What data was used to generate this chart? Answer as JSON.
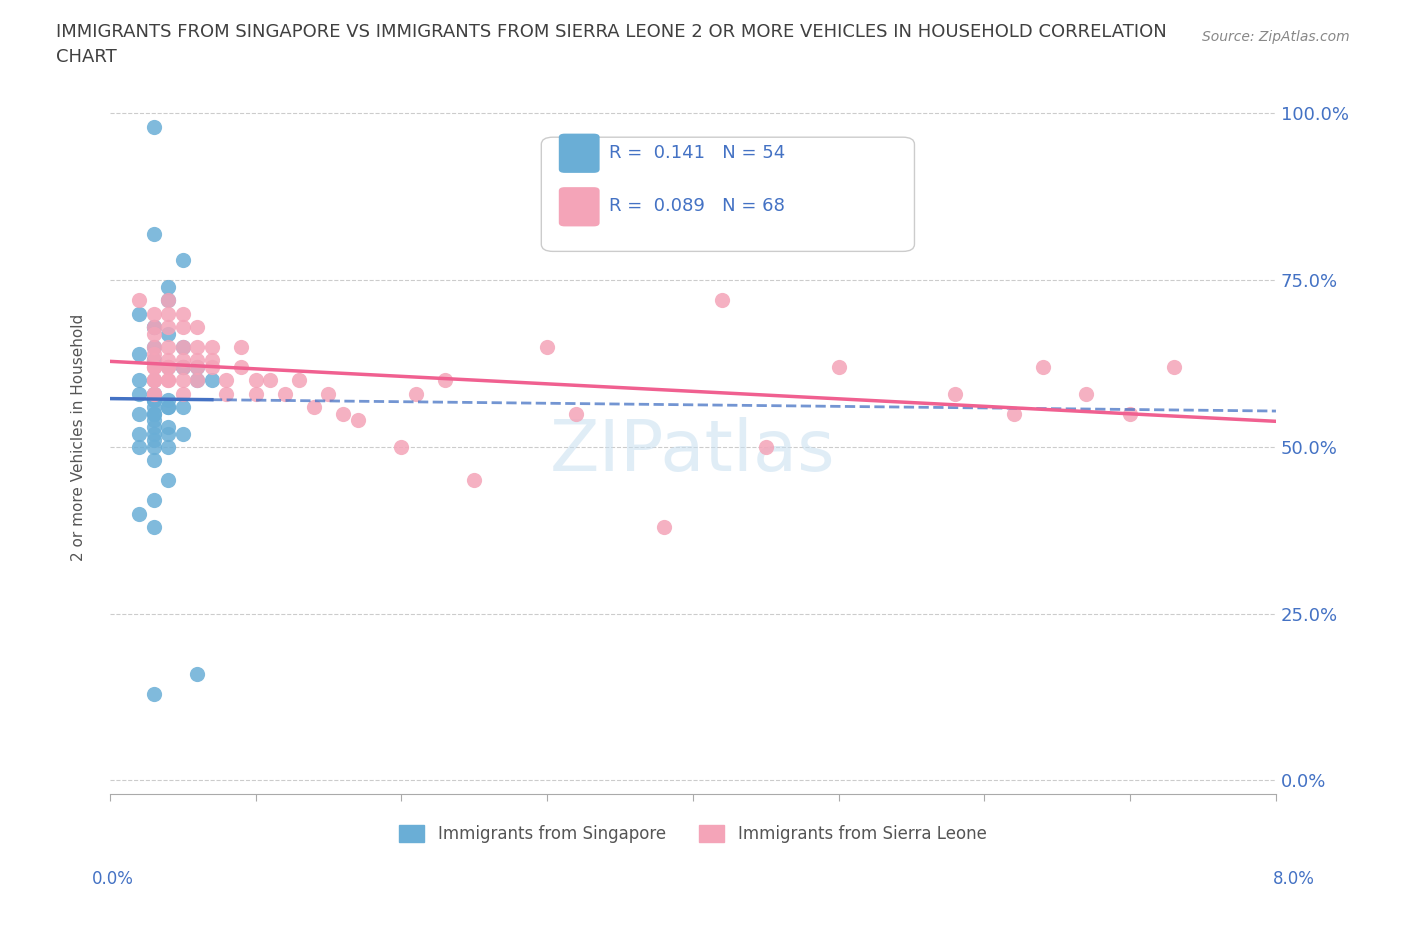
{
  "title_line1": "IMMIGRANTS FROM SINGAPORE VS IMMIGRANTS FROM SIERRA LEONE 2 OR MORE VEHICLES IN HOUSEHOLD CORRELATION",
  "title_line2": "CHART",
  "source": "Source: ZipAtlas.com",
  "ylabel_label": "2 or more Vehicles in Household",
  "x_min": 0.0,
  "x_max": 0.08,
  "y_min": 0.0,
  "y_max": 1.05,
  "watermark": "ZIPatlas",
  "legend_singapore": "R =  0.141   N = 54",
  "legend_sierra_leone": "R =  0.089   N = 68",
  "color_singapore": "#6aaed6",
  "color_sierra_leone": "#f4a4b8",
  "color_trend_singapore": "#4472c4",
  "color_trend_sierra_leone": "#f06090",
  "color_title": "#404040",
  "color_source": "#888888",
  "color_axis_labels": "#4472c4",
  "singapore_x": [
    0.003,
    0.003,
    0.005,
    0.004,
    0.004,
    0.002,
    0.003,
    0.003,
    0.004,
    0.005,
    0.003,
    0.002,
    0.003,
    0.003,
    0.004,
    0.005,
    0.006,
    0.005,
    0.006,
    0.007,
    0.003,
    0.002,
    0.003,
    0.002,
    0.003,
    0.003,
    0.003,
    0.003,
    0.004,
    0.004,
    0.005,
    0.004,
    0.003,
    0.003,
    0.003,
    0.002,
    0.003,
    0.004,
    0.003,
    0.002,
    0.004,
    0.005,
    0.003,
    0.003,
    0.002,
    0.003,
    0.004,
    0.003,
    0.004,
    0.003,
    0.002,
    0.003,
    0.006,
    0.003
  ],
  "singapore_y": [
    0.98,
    0.82,
    0.78,
    0.74,
    0.72,
    0.7,
    0.68,
    0.68,
    0.67,
    0.65,
    0.65,
    0.64,
    0.63,
    0.63,
    0.62,
    0.62,
    0.62,
    0.62,
    0.6,
    0.6,
    0.6,
    0.6,
    0.58,
    0.58,
    0.58,
    0.57,
    0.57,
    0.57,
    0.57,
    0.56,
    0.56,
    0.56,
    0.56,
    0.55,
    0.55,
    0.55,
    0.54,
    0.53,
    0.53,
    0.52,
    0.52,
    0.52,
    0.52,
    0.51,
    0.5,
    0.5,
    0.5,
    0.48,
    0.45,
    0.42,
    0.4,
    0.38,
    0.16,
    0.13
  ],
  "sierra_leone_x": [
    0.002,
    0.003,
    0.003,
    0.003,
    0.003,
    0.003,
    0.003,
    0.003,
    0.003,
    0.003,
    0.003,
    0.003,
    0.003,
    0.003,
    0.003,
    0.004,
    0.004,
    0.004,
    0.004,
    0.004,
    0.004,
    0.004,
    0.004,
    0.004,
    0.005,
    0.005,
    0.005,
    0.005,
    0.005,
    0.005,
    0.005,
    0.006,
    0.006,
    0.006,
    0.006,
    0.006,
    0.007,
    0.007,
    0.007,
    0.008,
    0.008,
    0.009,
    0.009,
    0.01,
    0.01,
    0.011,
    0.012,
    0.013,
    0.014,
    0.015,
    0.016,
    0.017,
    0.02,
    0.021,
    0.023,
    0.025,
    0.03,
    0.032,
    0.038,
    0.042,
    0.045,
    0.05,
    0.058,
    0.062,
    0.064,
    0.067,
    0.07,
    0.073
  ],
  "sierra_leone_y": [
    0.72,
    0.7,
    0.68,
    0.67,
    0.65,
    0.64,
    0.63,
    0.62,
    0.62,
    0.62,
    0.6,
    0.6,
    0.6,
    0.58,
    0.58,
    0.72,
    0.7,
    0.68,
    0.65,
    0.63,
    0.62,
    0.62,
    0.6,
    0.6,
    0.7,
    0.68,
    0.65,
    0.63,
    0.62,
    0.6,
    0.58,
    0.68,
    0.65,
    0.63,
    0.62,
    0.6,
    0.65,
    0.63,
    0.62,
    0.6,
    0.58,
    0.65,
    0.62,
    0.6,
    0.58,
    0.6,
    0.58,
    0.6,
    0.56,
    0.58,
    0.55,
    0.54,
    0.5,
    0.58,
    0.6,
    0.45,
    0.65,
    0.55,
    0.38,
    0.72,
    0.5,
    0.62,
    0.58,
    0.55,
    0.62,
    0.58,
    0.55,
    0.62
  ]
}
